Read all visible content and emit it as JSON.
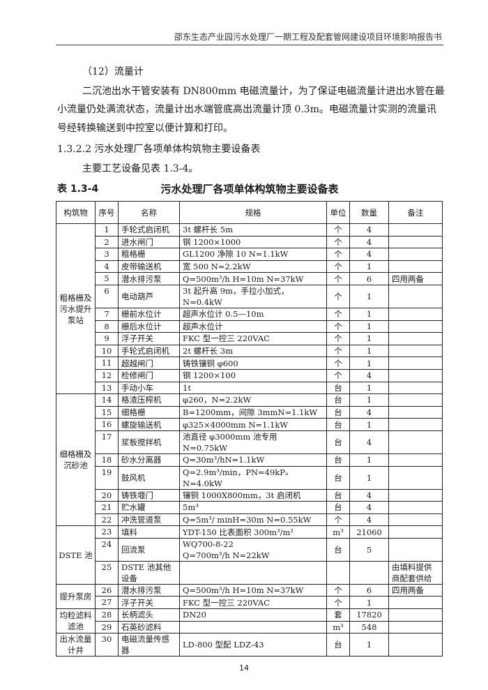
{
  "header": {
    "title": "邵东生态产业园污水处理厂一期工程及配套管网建设项目环境影响报告书"
  },
  "body": {
    "subheading": "（12）流量计",
    "paragraph_lines": [
      "二沉池出水干管安装有 DN800mm 电磁流量计，为了保证电磁流量计进出水管在最",
      "小流量仍处满流状态，流量计出水端管底高出流量计顶 0.3m。电磁流量计实测的流量讯",
      "号经转换输送到中控室以便计算和打印。"
    ],
    "section": "1.3.2.2  污水处理厂各项单体构筑物主要设备表",
    "intro": "主要工艺设备见表 1.3-4。"
  },
  "table": {
    "caption_number": "表 1.3-4",
    "caption_title": "污水处理厂各项单体构筑物主要设备表",
    "headers": [
      "构筑物",
      "序号",
      "名称",
      "规格",
      "单位",
      "数量",
      "备注"
    ],
    "groups": [
      {
        "name": "粗格栅及污水提升泵站",
        "rows": [
          [
            "1",
            "手轮式启闭机",
            "3t 螺杆长 5m",
            "个",
            "4",
            ""
          ],
          [
            "2",
            "进水闸门",
            "钢 1200×1000",
            "个",
            "4",
            ""
          ],
          [
            "3",
            "粗格栅",
            "GL1200 净隙 10    N=1.1kW",
            "个",
            "4",
            ""
          ],
          [
            "4",
            "皮带输送机",
            "宽 500 N=2.2kW",
            "个",
            "1",
            ""
          ],
          [
            "5",
            "潜水排污泵",
            "Q=500m³/h H=10m    N=37kW",
            "个",
            "6",
            "四用两备"
          ],
          [
            "6",
            "电动葫芦",
            "3t 起升高 9m，手拉小加式，N=0.4kW",
            "个",
            "1",
            ""
          ],
          [
            "7",
            "栅前水位计",
            "超声水位计 0.5—10m",
            "个",
            "1",
            ""
          ],
          [
            "8",
            "栅后水位计",
            "超声水位计",
            "个",
            "1",
            ""
          ],
          [
            "9",
            "浮子开关",
            "FKC 型一控三 220VAC",
            "个",
            "1",
            ""
          ],
          [
            "10",
            "手轮式启闭机",
            "2t 螺杆长 3m",
            "个",
            "1",
            ""
          ],
          [
            "11",
            "超越闸门",
            "铸铁镶铜 φ600",
            "个",
            "1",
            ""
          ],
          [
            "12",
            "检修闸门",
            "钢 1200×100",
            "个",
            "4",
            ""
          ],
          [
            "13",
            "手动小车",
            "1t",
            "台",
            "1",
            ""
          ]
        ]
      },
      {
        "name": "细格栅及沉砂池",
        "rows": [
          [
            "14",
            "格渣压榨机",
            "φ260，N=2.2kW",
            "台",
            "1",
            ""
          ],
          [
            "15",
            "细格栅",
            "B=1200mm，间隙 3mmN=1.1kW",
            "台",
            "4",
            ""
          ],
          [
            "16",
            "螺旋输送机",
            "φ325×4000mm N=1.1kW",
            "台",
            "1",
            ""
          ],
          [
            "17",
            "浆板搅拌机",
            "池直径 φ3000mm 池专用 N=0.75kW",
            "台",
            "4",
            ""
          ],
          [
            "18",
            "砂水分离器",
            "Q=30m³/hN=1.1kW",
            "台",
            "1",
            ""
          ],
          [
            "19",
            "鼓风机",
            "Q=2.9m³/min，PN=49kPₐ N=4.0kW",
            "台",
            "1",
            ""
          ],
          [
            "20",
            "铸铁堰门",
            "镶铜 1000X800mm，3t 启闭机",
            "台",
            "4",
            ""
          ],
          [
            "21",
            "贮水罐",
            "5m³",
            "台",
            "4",
            ""
          ],
          [
            "22",
            "冲洗管道泵",
            "Q=5m³/ minH=30m N=0.55kW",
            "个",
            "4",
            ""
          ]
        ]
      },
      {
        "name": "DSTE 池",
        "rows": [
          [
            "23",
            "填料",
            "YDT-150 比表面积 300m³/m²",
            "m³",
            "21060",
            ""
          ],
          [
            "24",
            "回流泵",
            "WQ700-8-22\nQ=700m³/h N=22kW",
            "台",
            "5",
            ""
          ],
          [
            "25",
            "DSTE 池其他设备",
            "",
            "",
            "",
            "由填料提供商配套供给"
          ]
        ]
      },
      {
        "name": "提升泵房",
        "rows": [
          [
            "26",
            "潜水排污泵",
            "Q=500m³/h H=10m    N=37kW",
            "个",
            "6",
            "四用两备"
          ],
          [
            "27",
            "浮子开关",
            "FKC 型一控三 220VAC",
            "个",
            "1",
            ""
          ]
        ]
      },
      {
        "name": "均粒滤料滤池",
        "rows": [
          [
            "28",
            "长柄滤头",
            "DN20",
            "套",
            "17820",
            ""
          ],
          [
            "29",
            "石英砂滤料",
            "",
            "m³",
            "548",
            ""
          ]
        ]
      },
      {
        "name": "出水流量计井",
        "rows": [
          [
            "30",
            "电磁流量传感器",
            "LD-800 型配 LDZ-43",
            "台",
            "1",
            ""
          ]
        ]
      }
    ]
  },
  "footer": {
    "page_number": "14"
  }
}
